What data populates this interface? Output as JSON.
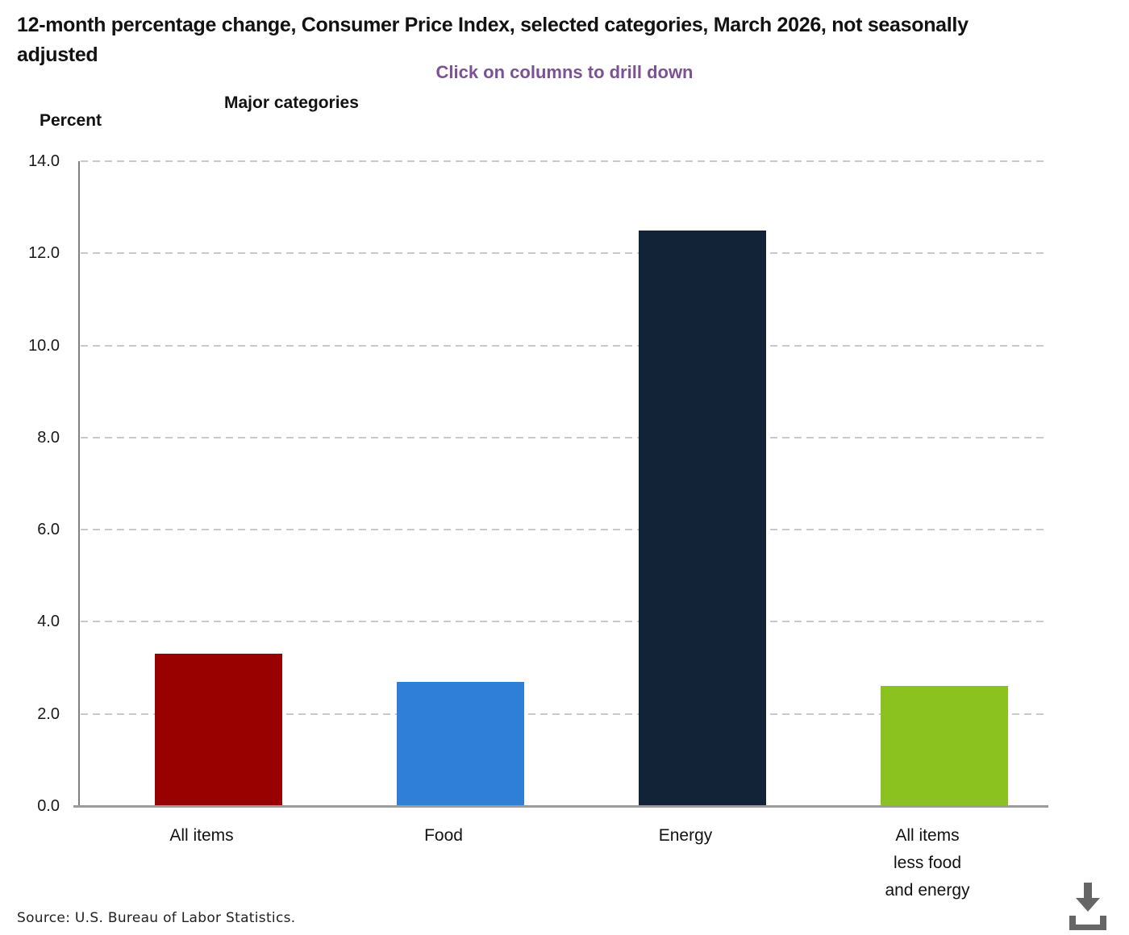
{
  "header": {
    "title": "12-month percentage change, Consumer Price Index, selected categories, March 2026, not seasonally adjusted",
    "subtitle": "Click on columns to drill down"
  },
  "axis_titles": {
    "y": "Percent",
    "x": "Major categories"
  },
  "footer": {
    "source": "Source: U.S. Bureau of Labor Statistics."
  },
  "icons": {
    "download": "download-icon"
  },
  "colors": {
    "subtitle": "#7D5295",
    "y_axis": "#808080",
    "x_axis": "#9B9B9B",
    "gridline": "#C9C9C9",
    "download_icon": "#666666"
  },
  "chart_data": {
    "type": "bar",
    "title": "12-month percentage change, Consumer Price Index, selected categories, March 2026, not seasonally adjusted",
    "annotation": "Click on columns to drill down",
    "xlabel": "Major categories",
    "ylabel": "Percent",
    "categories": [
      "All items",
      "Food",
      "Energy",
      "All items less food and energy"
    ],
    "label_lines": [
      [
        "All items"
      ],
      [
        "Food"
      ],
      [
        "Energy"
      ],
      [
        "All items",
        "less food",
        "and energy"
      ]
    ],
    "values": [
      3.3,
      2.7,
      12.5,
      2.6
    ],
    "bar_colors": [
      "#990000",
      "#2F7ED8",
      "#122338",
      "#8CC220"
    ],
    "ylim": [
      0,
      14
    ],
    "ytick_step": 2,
    "yticks": [
      "0.0",
      "2.0",
      "4.0",
      "6.0",
      "8.0",
      "10.0",
      "12.0",
      "14.0"
    ],
    "grid": "horizontal-dashed",
    "legend": "none"
  }
}
